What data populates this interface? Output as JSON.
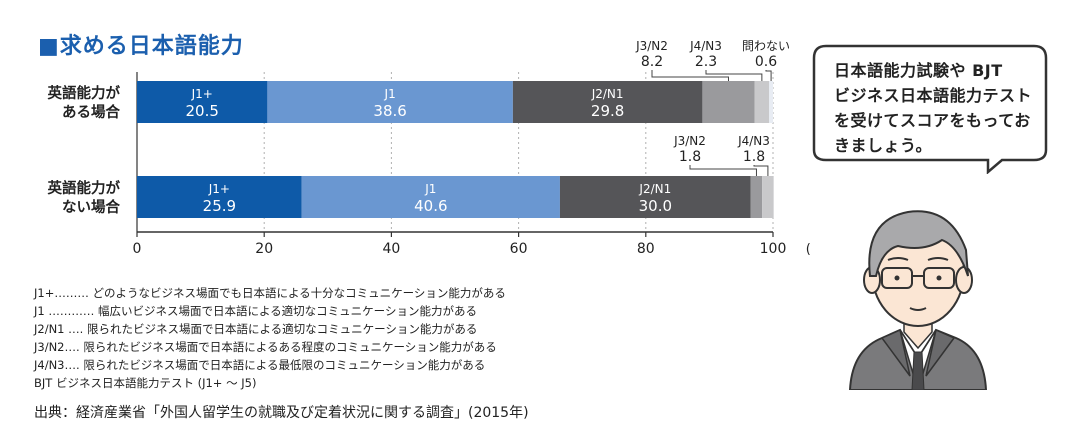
{
  "title": "■求める日本語能力",
  "chart_data": {
    "type": "bar",
    "orientation": "horizontal",
    "stacked": true,
    "xlim": [
      0,
      100
    ],
    "xticks": [
      0,
      20,
      40,
      60,
      80,
      100
    ],
    "x_unit": "(%)",
    "grid": true,
    "categories": [
      "英語能力が\nある場合",
      "英語能力が\nない場合"
    ],
    "category_lines": [
      [
        "英語能力が",
        "ある場合"
      ],
      [
        "英語能力が",
        "ない場合"
      ]
    ],
    "series": [
      {
        "name": "J1+",
        "color": "#0e5aa8",
        "values": [
          20.5,
          25.9
        ]
      },
      {
        "name": "J1",
        "color": "#6a97d1",
        "values": [
          38.6,
          40.6
        ]
      },
      {
        "name": "J2/N1",
        "color": "#555558",
        "values": [
          29.8,
          30.0
        ]
      },
      {
        "name": "J3/N2",
        "color": "#9a9a9d",
        "values": [
          8.2,
          1.8
        ]
      },
      {
        "name": "J4/N3",
        "color": "#c9c9cb",
        "values": [
          2.3,
          1.8
        ]
      },
      {
        "name": "問わない",
        "color": "#e8ecf3",
        "values": [
          0.6,
          null
        ]
      }
    ],
    "callouts": [
      [
        {
          "series": 3,
          "label": "J3/N2",
          "value": "8.2"
        },
        {
          "series": 4,
          "label": "J4/N3",
          "value": "2.3"
        },
        {
          "series": 5,
          "label": "問わない",
          "value": "0.6"
        }
      ],
      [
        {
          "series": 3,
          "label": "J3/N2",
          "value": "1.8"
        },
        {
          "series": 4,
          "label": "J4/N3",
          "value": "1.8"
        }
      ]
    ]
  },
  "legend_definitions": [
    "J1+……… どのようなビジネス場面でも日本語による十分なコミュニケーション能力がある",
    "J1 ………… 幅広いビジネス場面で日本語による適切なコミュニケーション能力がある",
    "J2/N1 …. 限られたビジネス場面で日本語による適切なコミュニケーション能力がある",
    "J3/N2…. 限られたビジネス場面で日本語によるある程度のコミュニケーション能力がある",
    "J4/N3…. 限られたビジネス場面で日本語による最低限のコミュニケーション能力がある",
    "BJT ビジネス日本語能力テスト (J1+ 〜 J5)"
  ],
  "source": "出典：経済産業省「外国人留学生の就職及び定着状況に関する調査」(2015年)",
  "speech_bubble": {
    "lines": [
      "日本語能力試験や BJT",
      "ビジネス日本語能力テスト",
      "を受けてスコアをもってお",
      "きましょう。"
    ]
  }
}
